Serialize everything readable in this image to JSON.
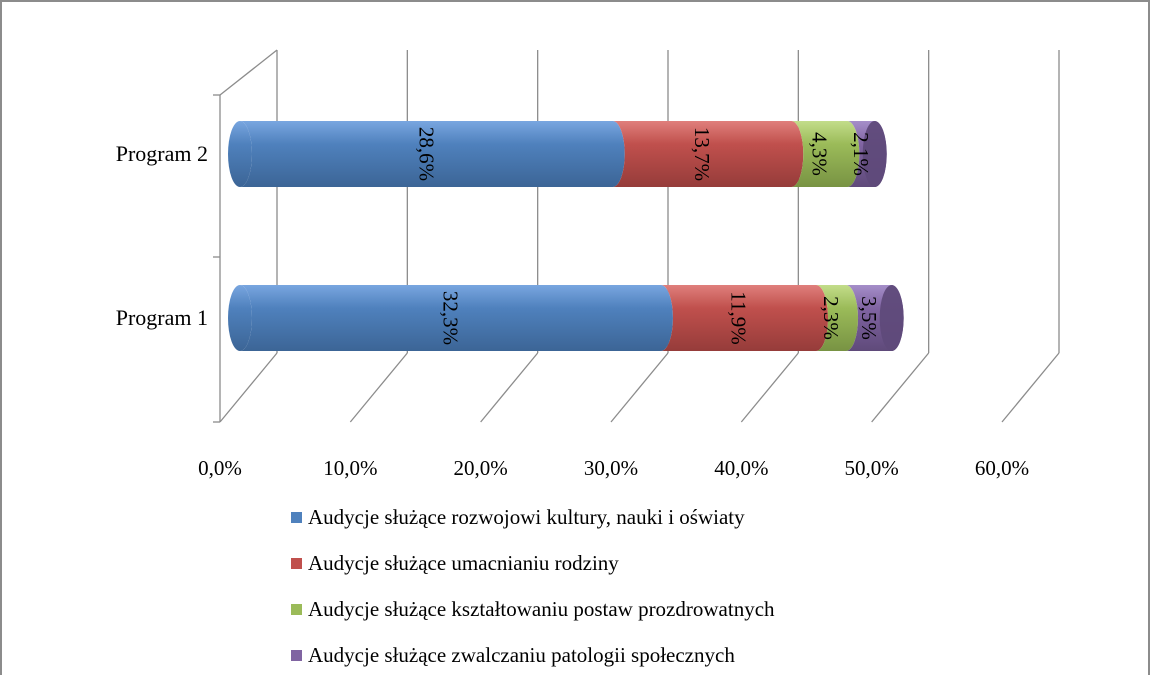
{
  "chart_data": {
    "type": "bar",
    "orientation": "horizontal",
    "stacked": true,
    "style": "3d-cylinder",
    "categories": [
      "Program 2",
      "Program 1"
    ],
    "series": [
      {
        "name": "Audycje służące rozwojowi kultury, nauki i oświaty",
        "values": [
          28.6,
          32.3
        ],
        "labels": [
          "28,6%",
          "32,3%"
        ],
        "color": "#4f81bd"
      },
      {
        "name": "Audycje służące umacnianiu rodziny",
        "values": [
          13.7,
          11.9
        ],
        "labels": [
          "13,7%",
          "11,9%"
        ],
        "color": "#c0504d"
      },
      {
        "name": "Audycje służące kształtowaniu postaw prozdrowatnych",
        "values": [
          4.3,
          2.3
        ],
        "labels": [
          "4,3%",
          "2,3%"
        ],
        "color": "#9bbb59"
      },
      {
        "name": "Audycje służące zwalczaniu patologii społecznych",
        "values": [
          2.1,
          3.5
        ],
        "labels": [
          "2,1%",
          "3,5%"
        ],
        "color": "#8064a2"
      }
    ],
    "x_ticks": [
      "0,0%",
      "10,0%",
      "20,0%",
      "30,0%",
      "40,0%",
      "50,0%",
      "60,0%"
    ],
    "xlim": [
      0,
      60
    ],
    "grid": true,
    "legend_position": "bottom"
  }
}
